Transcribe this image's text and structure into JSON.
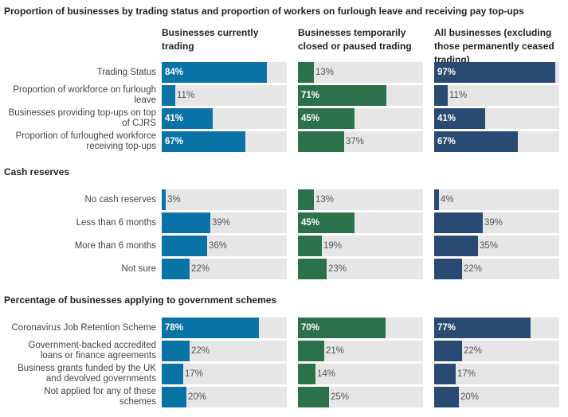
{
  "colors": {
    "currently_trading": "#0a73a6",
    "temporarily_closed": "#2b7149",
    "all_businesses": "#284a73",
    "track": "#e6e6e6"
  },
  "chart_data": {
    "type": "bar",
    "orientation": "horizontal",
    "xlim": [
      0,
      100
    ],
    "unit": "%",
    "columns": [
      "Businesses currently trading",
      "Businesses temporarily closed or paused trading",
      "All businesses (excluding those permanently ceased trading)"
    ],
    "sections": [
      {
        "title": "Proportion of businesses by trading status and proportion of workers on furlough leave and receiving pay top-ups",
        "rows": [
          {
            "label": "Trading Status",
            "values": [
              84,
              13,
              97
            ]
          },
          {
            "label": "Proportion of workforce on furlough\nleave",
            "values": [
              11,
              71,
              11
            ]
          },
          {
            "label": "Businesses providing top-ups on top\nof CJRS",
            "values": [
              41,
              45,
              41
            ]
          },
          {
            "label": "Proportion of furloughed workforce\nreceiving top-ups",
            "values": [
              67,
              37,
              67
            ]
          }
        ]
      },
      {
        "title": "Cash reserves",
        "rows": [
          {
            "label": "No cash reserves",
            "values": [
              3,
              13,
              4
            ]
          },
          {
            "label": "Less than 6 months",
            "values": [
              39,
              45,
              39
            ]
          },
          {
            "label": "More than 6 months",
            "values": [
              36,
              19,
              35
            ]
          },
          {
            "label": "Not sure",
            "values": [
              22,
              23,
              22
            ]
          }
        ]
      },
      {
        "title": "Percentage of businesses applying to government schemes",
        "rows": [
          {
            "label": "Coronavirus Job Retention Scheme",
            "values": [
              78,
              70,
              77
            ]
          },
          {
            "label": "Government-backed accredited\nloans or finance agreements",
            "values": [
              22,
              21,
              22
            ]
          },
          {
            "label": "Business grants funded by the UK\nand devolved governments",
            "values": [
              17,
              14,
              17
            ]
          },
          {
            "label": "Not applied for any of these\nschemes",
            "values": [
              20,
              25,
              20
            ]
          }
        ]
      }
    ]
  }
}
